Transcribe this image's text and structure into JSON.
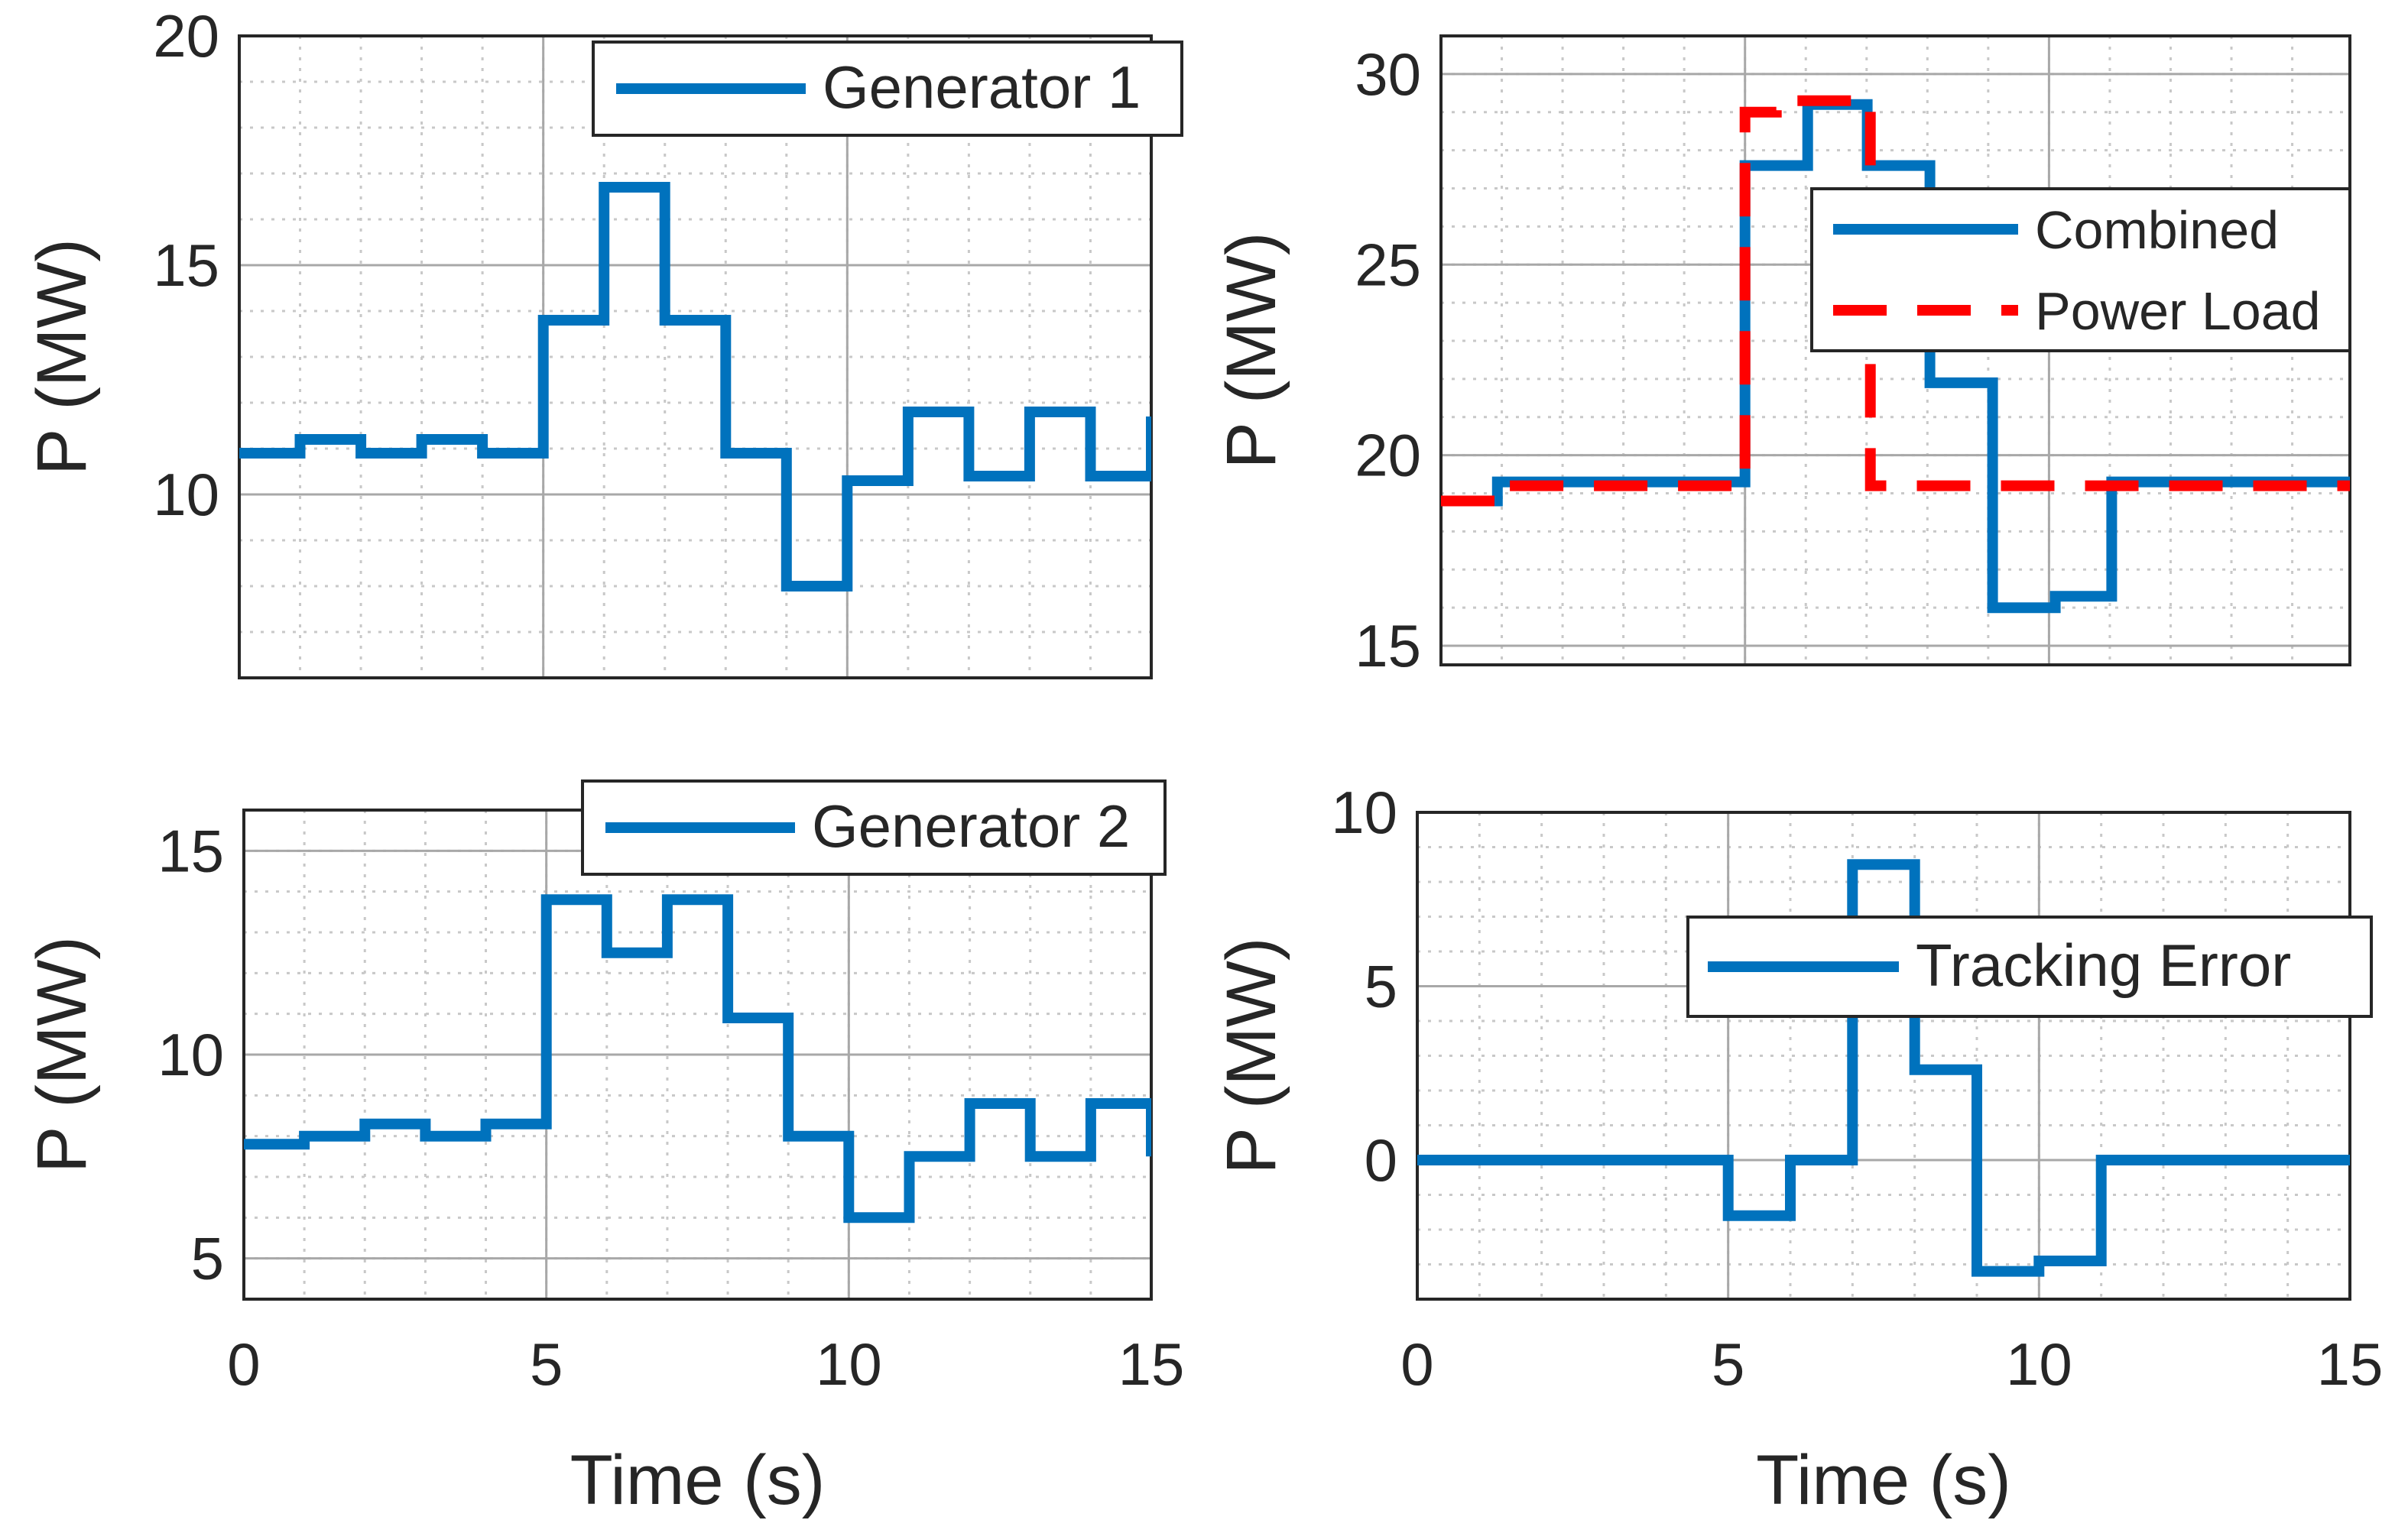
{
  "chart_data": [
    {
      "type": "line",
      "panel": "top-left",
      "title": "",
      "xlabel": "",
      "ylabel": "P (MW)",
      "xlim": [
        0,
        15
      ],
      "ylim": [
        6,
        20
      ],
      "xticks": [
        0,
        5,
        10,
        15
      ],
      "xtick_labels_visible": false,
      "yticks": [
        10,
        15,
        20
      ],
      "ytick_labels": [
        "10",
        "15",
        "20"
      ],
      "grid": true,
      "legend_position": "top-right",
      "series": [
        {
          "name": "Generator 1",
          "style": "solid",
          "color": "#0072BD",
          "x": [
            0,
            1,
            1,
            2,
            2,
            3,
            3,
            4,
            4,
            5,
            5,
            6,
            6,
            7,
            7,
            8,
            8,
            9,
            9,
            10,
            10,
            11,
            11,
            12,
            12,
            13,
            13,
            14,
            14,
            15,
            15
          ],
          "y": [
            10.9,
            10.9,
            11.2,
            11.2,
            10.9,
            10.9,
            11.2,
            11.2,
            10.9,
            10.9,
            13.8,
            13.8,
            16.7,
            16.7,
            13.8,
            13.8,
            10.9,
            10.9,
            8.0,
            8.0,
            10.3,
            10.3,
            11.8,
            11.8,
            10.4,
            10.4,
            11.8,
            11.8,
            10.4,
            10.4,
            11.7
          ]
        }
      ]
    },
    {
      "type": "line",
      "panel": "top-right",
      "title": "",
      "xlabel": "",
      "ylabel": "P (MW)",
      "xlim": [
        0,
        14.5
      ],
      "ylim": [
        14.5,
        31
      ],
      "xticks": [
        0,
        4.85,
        9.7,
        14.5
      ],
      "xtick_labels_visible": false,
      "yticks": [
        15,
        20,
        25,
        30
      ],
      "ytick_labels": [
        "15",
        "20",
        "25",
        "30"
      ],
      "grid": true,
      "legend_position": "top-right",
      "series": [
        {
          "name": "Combined",
          "style": "solid",
          "color": "#0072BD",
          "x": [
            0,
            0.9,
            0.9,
            4.85,
            4.85,
            5.85,
            5.85,
            6.8,
            6.8,
            7.8,
            7.8,
            8.8,
            8.8,
            9.8,
            9.8,
            10.7,
            10.7,
            14.5
          ],
          "y": [
            18.8,
            18.8,
            19.3,
            19.3,
            27.6,
            27.6,
            29.2,
            29.2,
            27.6,
            27.6,
            21.9,
            21.9,
            16.0,
            16.0,
            16.3,
            16.3,
            19.3,
            19.3
          ]
        },
        {
          "name": "Power Load",
          "style": "dashed",
          "color": "#FF0000",
          "x": [
            0,
            0.9,
            0.9,
            4.85,
            4.85,
            5.35,
            5.35,
            6.85,
            6.85,
            14.5
          ],
          "y": [
            18.8,
            18.8,
            19.2,
            19.2,
            29.0,
            29.0,
            29.3,
            29.3,
            19.2,
            19.2
          ]
        }
      ]
    },
    {
      "type": "line",
      "panel": "bottom-left",
      "title": "",
      "xlabel": "Time (s)",
      "ylabel": "P (MW)",
      "xlim": [
        0,
        15
      ],
      "ylim": [
        4,
        16
      ],
      "xticks": [
        0,
        5,
        10,
        15
      ],
      "xtick_labels": [
        "0",
        "5",
        "10",
        "15"
      ],
      "yticks": [
        5,
        10,
        15
      ],
      "ytick_labels": [
        "5",
        "10",
        "15"
      ],
      "grid": true,
      "legend_position": "top-right",
      "series": [
        {
          "name": "Generator 2",
          "style": "solid",
          "color": "#0072BD",
          "x": [
            0,
            1,
            1,
            2,
            2,
            3,
            3,
            4,
            4,
            5,
            5,
            6,
            6,
            7,
            7,
            8,
            8,
            9,
            9,
            10,
            10,
            11,
            11,
            12,
            12,
            13,
            13,
            14,
            14,
            15,
            15
          ],
          "y": [
            7.8,
            7.8,
            8.0,
            8.0,
            8.3,
            8.3,
            8.0,
            8.0,
            8.3,
            8.3,
            13.8,
            13.8,
            12.5,
            12.5,
            13.8,
            13.8,
            10.9,
            10.9,
            8.0,
            8.0,
            6.0,
            6.0,
            7.5,
            7.5,
            8.8,
            8.8,
            7.5,
            7.5,
            8.8,
            8.8,
            7.5
          ]
        }
      ]
    },
    {
      "type": "line",
      "panel": "bottom-right",
      "title": "",
      "xlabel": "Time (s)",
      "ylabel": "P (MW)",
      "xlim": [
        0,
        15
      ],
      "ylim": [
        -4,
        10
      ],
      "xticks": [
        0,
        5,
        10,
        15
      ],
      "xtick_labels": [
        "0",
        "5",
        "10",
        "15"
      ],
      "yticks": [
        0,
        5,
        10
      ],
      "ytick_labels": [
        "0",
        "5",
        "10"
      ],
      "grid": true,
      "legend_position": "top-right",
      "series": [
        {
          "name": "Tracking Error",
          "style": "solid",
          "color": "#0072BD",
          "x": [
            0,
            5,
            5,
            6,
            6,
            7,
            7,
            8,
            8,
            9,
            9,
            10,
            10,
            11,
            11,
            15
          ],
          "y": [
            0,
            0,
            -1.6,
            -1.6,
            0,
            0,
            8.5,
            8.5,
            2.6,
            2.6,
            -3.2,
            -3.2,
            -2.9,
            -2.9,
            0,
            0
          ]
        }
      ]
    }
  ]
}
